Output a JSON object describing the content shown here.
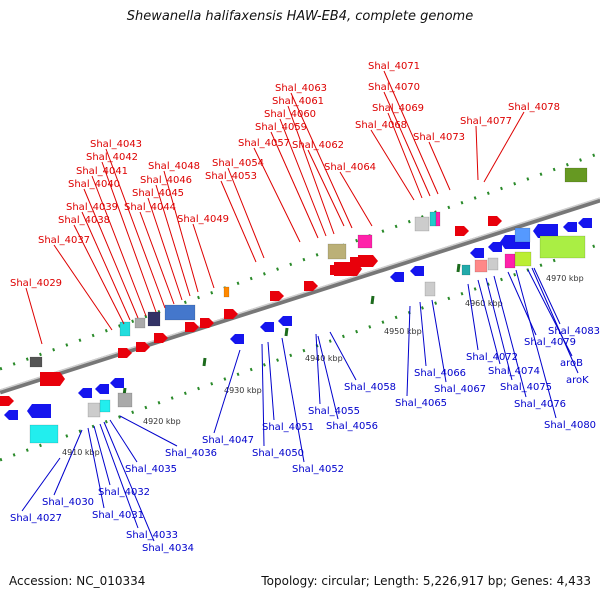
{
  "title": "Shewanella halifaxensis HAW-EB4, complete genome",
  "footer": {
    "accession": "Accession: NC_010334",
    "summary": "Topology: circular; Length: 5,226,917 bp; Genes: 4,433"
  },
  "colors": {
    "forward_label": "#dd0000",
    "reverse_label": "#0000cc",
    "backbone": "#888888",
    "tick": "#2a8a2a"
  },
  "scale_labels": [
    "4910 kbp",
    "4920 kbp",
    "4930 kbp",
    "4940 kbp",
    "4950 kbp",
    "4960 kbp",
    "4970 kbp"
  ],
  "forward_genes": [
    "Shal_4029",
    "Shal_4037",
    "Shal_4038",
    "Shal_4039",
    "Shal_4040",
    "Shal_4041",
    "Shal_4042",
    "Shal_4043",
    "Shal_4044",
    "Shal_4045",
    "Shal_4046",
    "Shal_4048",
    "Shal_4049",
    "Shal_4053",
    "Shal_4054",
    "Shal_4057",
    "Shal_4059",
    "Shal_4060",
    "Shal_4061",
    "Shal_4062",
    "Shal_4063",
    "Shal_4064",
    "Shal_4068",
    "Shal_4069",
    "Shal_4070",
    "Shal_4071",
    "Shal_4073",
    "Shal_4077",
    "Shal_4078"
  ],
  "reverse_genes": [
    "Shal_4027",
    "Shal_4030",
    "Shal_4031",
    "Shal_4032",
    "Shal_4033",
    "Shal_4034",
    "Shal_4035",
    "Shal_4036",
    "Shal_4047",
    "Shal_4050",
    "Shal_4051",
    "Shal_4052",
    "Shal_4055",
    "Shal_4056",
    "Shal_4058",
    "Shal_4065",
    "Shal_4066",
    "Shal_4067",
    "Shal_4072",
    "Shal_4074",
    "Shal_4075",
    "Shal_4076",
    "Shal_4079",
    "Shal_4080",
    "Shal_4083",
    "aroB",
    "aroK"
  ]
}
